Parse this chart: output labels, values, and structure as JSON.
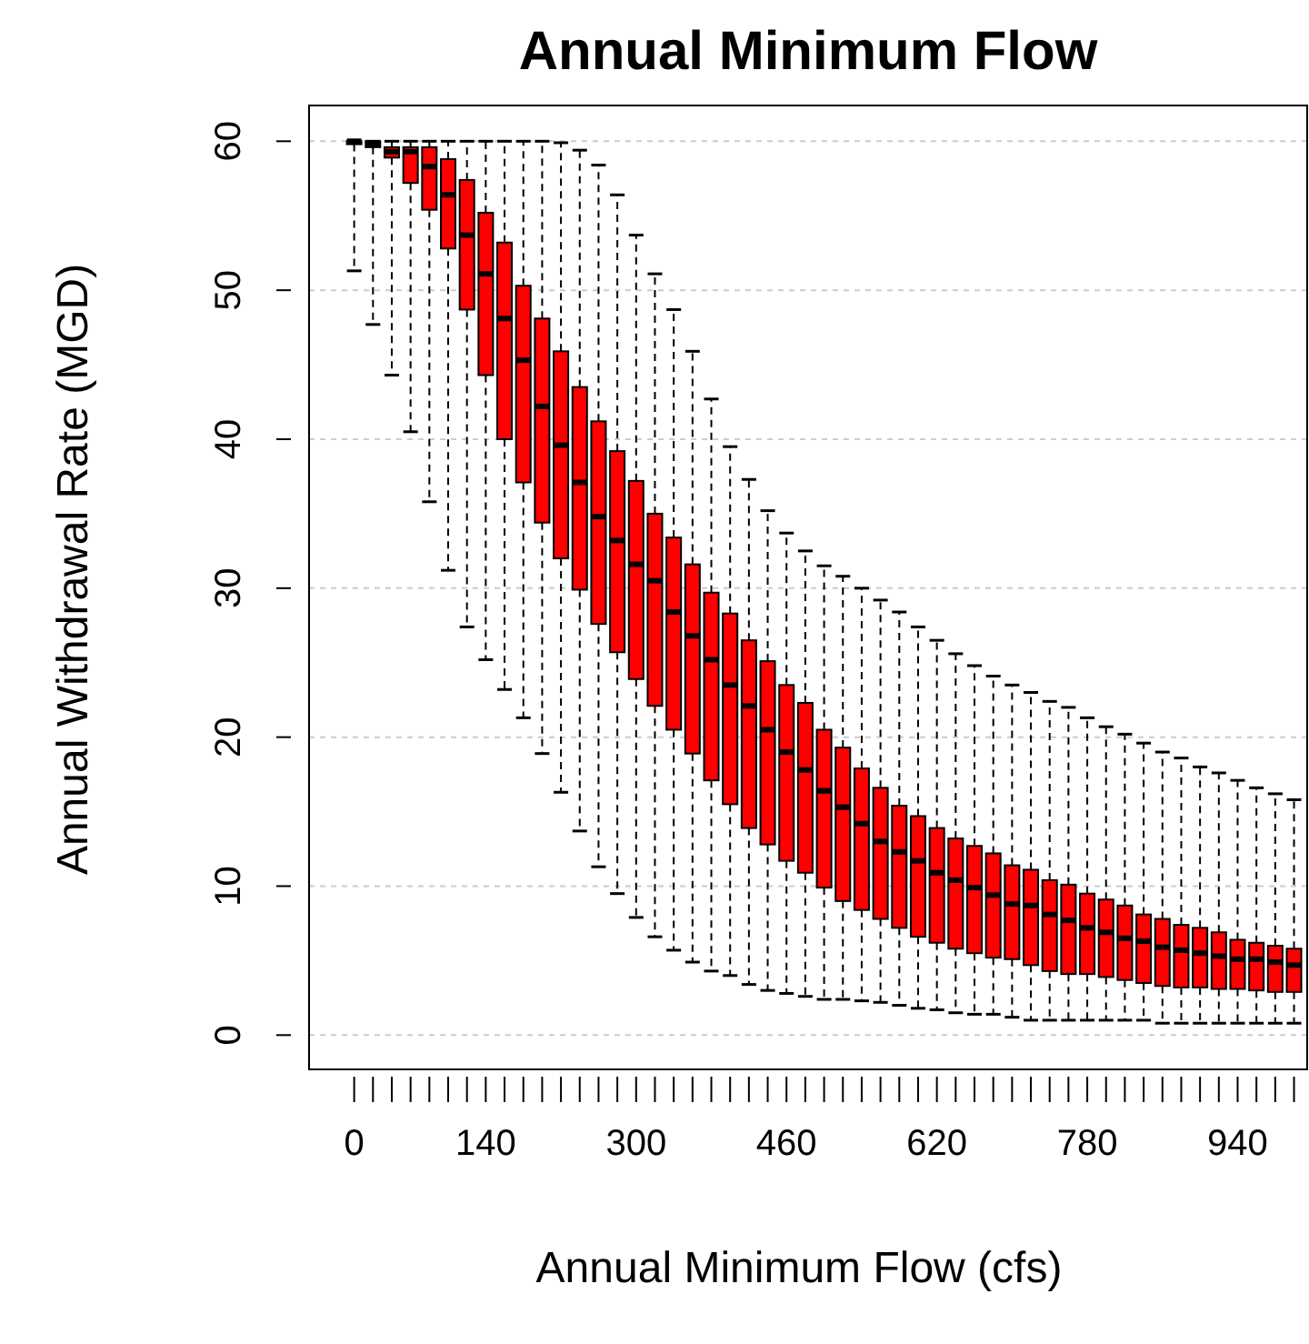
{
  "chart_data": {
    "type": "box",
    "title": "Annual Minimum Flow",
    "xlabel": "Annual Minimum Flow (cfs)",
    "ylabel": "Annual Withdrawal Rate (MGD)",
    "categories": [
      "0",
      null,
      null,
      null,
      null,
      null,
      null,
      "140",
      null,
      null,
      null,
      null,
      null,
      null,
      null,
      "300",
      null,
      null,
      null,
      null,
      null,
      null,
      null,
      "460",
      null,
      null,
      null,
      null,
      null,
      null,
      null,
      "620",
      null,
      null,
      null,
      null,
      null,
      null,
      null,
      "780",
      null,
      null,
      null,
      null,
      null,
      null,
      null,
      "940",
      null,
      null,
      null
    ],
    "color": "#ff0000",
    "ylim": [
      -2.3,
      62.4
    ],
    "yticks": [
      0,
      10,
      20,
      30,
      40,
      50,
      60
    ],
    "grid": "y",
    "boxes": [
      {
        "low": 51.3,
        "q1": 59.8,
        "median": 60,
        "q3": 60,
        "high": 60
      },
      {
        "low": 47.7,
        "q1": 59.6,
        "median": 59.8,
        "q3": 60,
        "high": 60
      },
      {
        "low": 44.3,
        "q1": 58.9,
        "median": 59.3,
        "q3": 59.6,
        "high": 60
      },
      {
        "low": 40.5,
        "q1": 57.2,
        "median": 59.3,
        "q3": 59.6,
        "high": 60
      },
      {
        "low": 35.8,
        "q1": 55.4,
        "median": 58.3,
        "q3": 59.6,
        "high": 60
      },
      {
        "low": 31.2,
        "q1": 52.8,
        "median": 56.4,
        "q3": 58.8,
        "high": 60
      },
      {
        "low": 27.4,
        "q1": 48.7,
        "median": 53.7,
        "q3": 57.4,
        "high": 60
      },
      {
        "low": 25.2,
        "q1": 44.3,
        "median": 51.1,
        "q3": 55.2,
        "high": 60
      },
      {
        "low": 23.2,
        "q1": 40.0,
        "median": 48.1,
        "q3": 53.2,
        "high": 60
      },
      {
        "low": 21.3,
        "q1": 37.1,
        "median": 45.3,
        "q3": 50.3,
        "high": 60
      },
      {
        "low": 18.9,
        "q1": 34.4,
        "median": 42.2,
        "q3": 48.1,
        "high": 60
      },
      {
        "low": 16.3,
        "q1": 32.0,
        "median": 39.6,
        "q3": 45.9,
        "high": 59.9
      },
      {
        "low": 13.7,
        "q1": 29.9,
        "median": 37.1,
        "q3": 43.5,
        "high": 59.4
      },
      {
        "low": 11.3,
        "q1": 27.6,
        "median": 34.8,
        "q3": 41.2,
        "high": 58.4
      },
      {
        "low": 9.5,
        "q1": 25.7,
        "median": 33.2,
        "q3": 39.2,
        "high": 56.4
      },
      {
        "low": 7.9,
        "q1": 23.9,
        "median": 31.6,
        "q3": 37.2,
        "high": 53.7
      },
      {
        "low": 6.6,
        "q1": 22.1,
        "median": 30.5,
        "q3": 35.0,
        "high": 51.1
      },
      {
        "low": 5.7,
        "q1": 20.5,
        "median": 28.4,
        "q3": 33.4,
        "high": 48.7
      },
      {
        "low": 4.9,
        "q1": 18.9,
        "median": 26.8,
        "q3": 31.6,
        "high": 45.9
      },
      {
        "low": 4.3,
        "q1": 17.1,
        "median": 25.2,
        "q3": 29.7,
        "high": 42.7
      },
      {
        "low": 4.0,
        "q1": 15.5,
        "median": 23.5,
        "q3": 28.3,
        "high": 39.5
      },
      {
        "low": 3.4,
        "q1": 13.9,
        "median": 22.1,
        "q3": 26.5,
        "high": 37.3
      },
      {
        "low": 3.0,
        "q1": 12.8,
        "median": 20.5,
        "q3": 25.1,
        "high": 35.2
      },
      {
        "low": 2.8,
        "q1": 11.7,
        "median": 19.0,
        "q3": 23.5,
        "high": 33.7
      },
      {
        "low": 2.6,
        "q1": 10.9,
        "median": 17.8,
        "q3": 22.3,
        "high": 32.5
      },
      {
        "low": 2.4,
        "q1": 9.9,
        "median": 16.4,
        "q3": 20.5,
        "high": 31.5
      },
      {
        "low": 2.4,
        "q1": 9.0,
        "median": 15.3,
        "q3": 19.3,
        "high": 30.8
      },
      {
        "low": 2.3,
        "q1": 8.4,
        "median": 14.2,
        "q3": 17.9,
        "high": 30.0
      },
      {
        "low": 2.2,
        "q1": 7.8,
        "median": 13.0,
        "q3": 16.6,
        "high": 29.2
      },
      {
        "low": 2.0,
        "q1": 7.2,
        "median": 12.3,
        "q3": 15.4,
        "high": 28.4
      },
      {
        "low": 1.8,
        "q1": 6.6,
        "median": 11.7,
        "q3": 14.7,
        "high": 27.4
      },
      {
        "low": 1.7,
        "q1": 6.2,
        "median": 10.9,
        "q3": 13.9,
        "high": 26.5
      },
      {
        "low": 1.5,
        "q1": 5.8,
        "median": 10.4,
        "q3": 13.2,
        "high": 25.6
      },
      {
        "low": 1.4,
        "q1": 5.5,
        "median": 9.9,
        "q3": 12.7,
        "high": 24.8
      },
      {
        "low": 1.4,
        "q1": 5.2,
        "median": 9.4,
        "q3": 12.2,
        "high": 24.1
      },
      {
        "low": 1.2,
        "q1": 5.1,
        "median": 8.8,
        "q3": 11.4,
        "high": 23.5
      },
      {
        "low": 1.0,
        "q1": 4.7,
        "median": 8.7,
        "q3": 11.1,
        "high": 23.0
      },
      {
        "low": 1.0,
        "q1": 4.3,
        "median": 8.1,
        "q3": 10.4,
        "high": 22.4
      },
      {
        "low": 1.0,
        "q1": 4.1,
        "median": 7.7,
        "q3": 10.1,
        "high": 22.0
      },
      {
        "low": 1.0,
        "q1": 4.1,
        "median": 7.2,
        "q3": 9.5,
        "high": 21.3
      },
      {
        "low": 1.0,
        "q1": 3.9,
        "median": 6.9,
        "q3": 9.1,
        "high": 20.7
      },
      {
        "low": 1.0,
        "q1": 3.7,
        "median": 6.5,
        "q3": 8.7,
        "high": 20.2
      },
      {
        "low": 1.0,
        "q1": 3.5,
        "median": 6.3,
        "q3": 8.1,
        "high": 19.6
      },
      {
        "low": 0.8,
        "q1": 3.3,
        "median": 5.9,
        "q3": 7.8,
        "high": 19.0
      },
      {
        "low": 0.8,
        "q1": 3.2,
        "median": 5.7,
        "q3": 7.4,
        "high": 18.6
      },
      {
        "low": 0.8,
        "q1": 3.2,
        "median": 5.5,
        "q3": 7.2,
        "high": 18.0
      },
      {
        "low": 0.8,
        "q1": 3.1,
        "median": 5.3,
        "q3": 6.9,
        "high": 17.6
      },
      {
        "low": 0.8,
        "q1": 3.1,
        "median": 5.1,
        "q3": 6.4,
        "high": 17.1
      },
      {
        "low": 0.8,
        "q1": 3.0,
        "median": 5.1,
        "q3": 6.2,
        "high": 16.6
      },
      {
        "low": 0.8,
        "q1": 2.9,
        "median": 4.9,
        "q3": 6.0,
        "high": 16.2
      },
      {
        "low": 0.8,
        "q1": 2.9,
        "median": 4.7,
        "q3": 5.8,
        "high": 15.8
      }
    ]
  }
}
